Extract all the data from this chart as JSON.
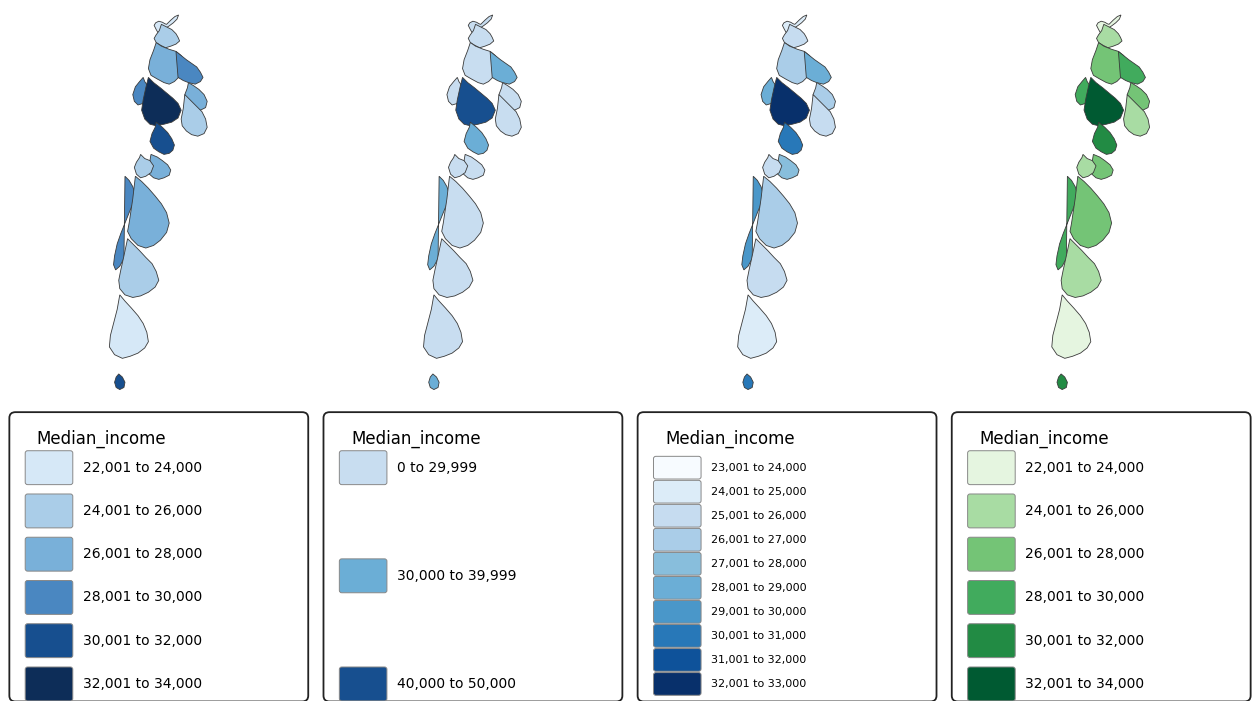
{
  "panels": [
    {
      "title": "Median_income",
      "labels": [
        "22,001 to 24,000",
        "24,001 to 26,000",
        "26,001 to 28,000",
        "28,001 to 30,000",
        "30,001 to 32,000",
        "32,001 to 34,000"
      ],
      "colors": [
        "#d6e8f7",
        "#aacde8",
        "#79b0d9",
        "#4a87c1",
        "#174f8f",
        "#0d2d58"
      ],
      "region_color_indices": [
        1,
        0,
        2,
        3,
        2,
        1,
        3,
        5,
        4,
        2,
        1,
        3,
        2,
        1,
        0,
        4
      ],
      "has_map_border": true
    },
    {
      "title": "Median_income",
      "labels": [
        "0 to 29,999",
        "30,000 to 39,999",
        "40,000 to 50,000"
      ],
      "colors": [
        "#c8ddf0",
        "#6baed6",
        "#174f8f"
      ],
      "region_color_indices": [
        0,
        0,
        0,
        0,
        0,
        0,
        0,
        2,
        1,
        0,
        0,
        0,
        0,
        0,
        0,
        1
      ],
      "has_map_border": true
    },
    {
      "title": "Median_income",
      "labels": [
        "23,001 to 24,000",
        "24,001 to 25,000",
        "25,001 to 26,000",
        "26,001 to 27,000",
        "27,001 to 28,000",
        "28,001 to 29,000",
        "29,001 to 30,000",
        "30,001 to 31,000",
        "31,001 to 32,000",
        "32,001 to 33,000"
      ],
      "colors": [
        "#f7fbff",
        "#dcecf8",
        "#c6dcf0",
        "#aacde8",
        "#88bedc",
        "#6baed6",
        "#4a97c9",
        "#2878b8",
        "#0e529a",
        "#08306b"
      ],
      "region_color_indices": [
        2,
        1,
        3,
        4,
        3,
        2,
        5,
        9,
        7,
        3,
        2,
        5,
        3,
        2,
        1,
        7
      ],
      "has_map_border": true
    },
    {
      "title": "Median_income",
      "labels": [
        "22,001 to 24,000",
        "24,001 to 26,000",
        "26,001 to 28,000",
        "28,001 to 30,000",
        "30,001 to 32,000",
        "32,001 to 34,000"
      ],
      "colors": [
        "#e5f5e0",
        "#a8dca3",
        "#74c476",
        "#41ab5d",
        "#228b44",
        "#005a32"
      ],
      "region_color_indices": [
        1,
        0,
        2,
        3,
        2,
        1,
        3,
        5,
        4,
        2,
        1,
        3,
        2,
        1,
        0,
        4
      ],
      "has_map_border": true
    }
  ],
  "background_color": "#ffffff",
  "title_fontsize": 12,
  "label_fontsize_large": 10,
  "label_fontsize_small": 8,
  "fig_width": 12.6,
  "fig_height": 7.05,
  "nz_regions": {
    "northland": {
      "x": [
        0.54,
        0.548,
        0.556,
        0.562,
        0.558,
        0.552,
        0.545,
        0.538,
        0.532,
        0.528,
        0.522,
        0.518,
        0.52,
        0.528,
        0.535,
        0.54
      ],
      "y": [
        0.96,
        0.968,
        0.972,
        0.965,
        0.955,
        0.948,
        0.94,
        0.932,
        0.938,
        0.945,
        0.95,
        0.958,
        0.963,
        0.965,
        0.962,
        0.96
      ],
      "color_idx": 0
    }
  }
}
